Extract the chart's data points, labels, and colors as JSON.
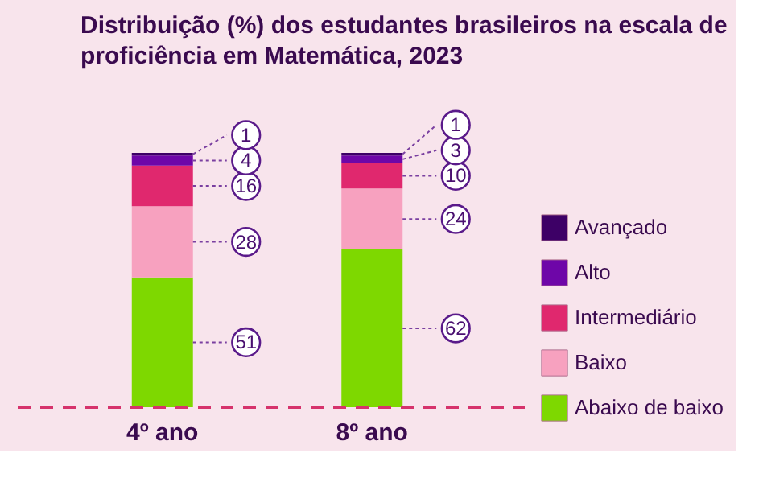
{
  "chart_data": {
    "type": "bar",
    "stacked": true,
    "title": "Distribuição (%) dos estudantes brasileiros na escala de proficiência em Matemática, 2023",
    "categories": [
      "4º ano",
      "8º ano"
    ],
    "series": [
      {
        "name": "Abaixo de baixo",
        "color": "#7ed800",
        "values": [
          51,
          62
        ]
      },
      {
        "name": "Baixo",
        "color": "#f7a1bf",
        "values": [
          28,
          24
        ]
      },
      {
        "name": "Intermediário",
        "color": "#e0286e",
        "values": [
          16,
          10
        ]
      },
      {
        "name": "Alto",
        "color": "#6e06a8",
        "values": [
          4,
          3
        ]
      },
      {
        "name": "Avançado",
        "color": "#3d0066",
        "values": [
          1,
          1
        ]
      }
    ],
    "ylim": [
      0,
      100
    ],
    "tick_labels": "x",
    "grid": false,
    "legend": "right",
    "data_labels": true,
    "ref_lines": [
      {
        "axis": "y",
        "value": 0,
        "color": "#d6336c",
        "line_style": "dashed"
      }
    ]
  }
}
